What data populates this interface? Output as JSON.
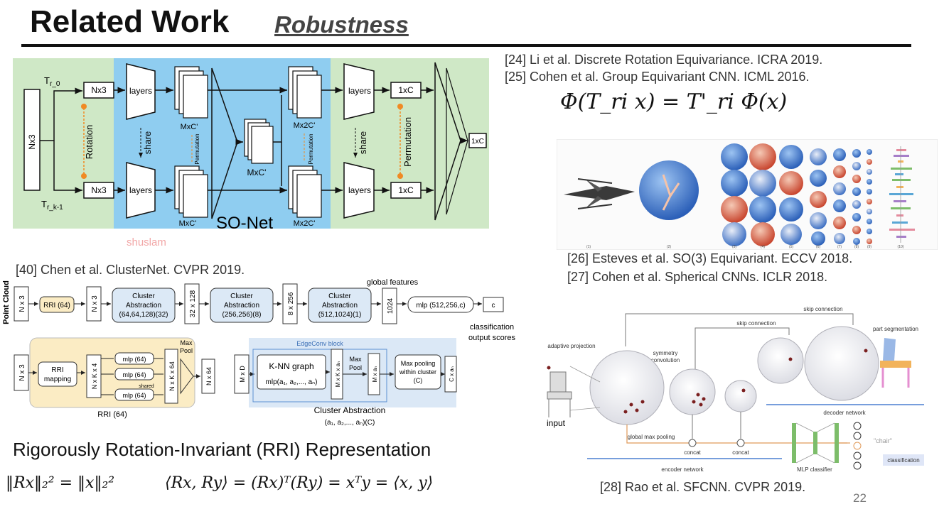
{
  "slide": {
    "title": "Related Work",
    "subtitle": "Robustness",
    "page_number": "22",
    "watermark": "shuslam"
  },
  "references": {
    "r24": "[24] Li et al. Discrete Rotation Equivariance. ICRA 2019.",
    "r25": "[25] Cohen et al. Group Equivariant CNN. ICML 2016.",
    "r26": "[26] Esteves et al. SO(3) Equivariant. ECCV 2018.",
    "r27": "[27] Cohen et al. Spherical CNNs. ICLR 2018.",
    "r40": "[40] Chen et al. ClusterNet. CVPR 2019.",
    "r28": "[28] Rao et al. SFCNN. CVPR 2019."
  },
  "equations": {
    "equivariance": "Φ(T_ri x) = T'_ri Φ(x)",
    "rri_norm": "‖Rx‖₂² = ‖x‖₂²",
    "rri_inner": "⟨Rx, Ry⟩ = (Rx)ᵀ(Ry) = xᵀy = ⟨x, y⟩"
  },
  "rri_heading": "Rigorously Rotation-Invariant (RRI) Representation",
  "sonet": {
    "label": "SO-Net",
    "tr0": "T",
    "tr0_sub": "r_0",
    "trk": "T",
    "trk_sub": "r_k-1",
    "nx3": "Nx3",
    "layers": "layers",
    "share": "share",
    "rotation": "Rotation",
    "permutation": "Permutation",
    "mxc": "MxC'",
    "mx2c": "Mx2C'",
    "onexc": "1xC"
  },
  "spherical_figure": {
    "caption_ticks": [
      "(1)",
      "(2)",
      "(3)",
      "(4)",
      "(5)",
      "(6)",
      "(7)",
      "(8)",
      "(9)",
      "(10)"
    ]
  },
  "clusternet": {
    "point_cloud": "Point Cloud",
    "nx3": "N x 3",
    "rri64": "RRI (64)",
    "ca1": [
      "Cluster",
      "Abstraction",
      "(64,64,128)(32)"
    ],
    "d32x128": "32 x 128",
    "ca2": [
      "Cluster",
      "Abstraction",
      "(256,256)(8)"
    ],
    "d8x256": "8 x 256",
    "ca3": [
      "Cluster",
      "Abstraction",
      "(512,1024)(1)"
    ],
    "global_features": "global features",
    "d1024": "1024",
    "mlp_out": "mlp (512,256,c)",
    "c": "c",
    "scores": [
      "classification",
      "output scores"
    ],
    "rri_mapping": [
      "RRI",
      "mapping"
    ],
    "nxkx4": "N x K x 4",
    "mlp64": "mlp (64)",
    "shared": "shared",
    "nxkx64": "N x K x 64",
    "max_pool": [
      "Max",
      "Pool"
    ],
    "nx64": "N x 64",
    "rri64_caption": "RRI (64)",
    "mxd": "M x D",
    "edgeconv": "EdgeConv block",
    "knn": "K-NN graph",
    "mlp_an": "mlp(a₁, a₂,..., aₙ)",
    "mxkxan": "M x K x aₙ",
    "maxpool2": [
      "Max",
      "Pool"
    ],
    "mxan": "M x aₙ",
    "maxpool_cluster": [
      "Max pooling",
      "within cluster",
      "(C)"
    ],
    "cxan": "C x aₙ",
    "ca_caption": "Cluster Abstraction",
    "ca_params": "(a₁, a₂,..., aₙ)(C)"
  },
  "sfcnn": {
    "skip1": "skip connection",
    "skip2": "skip connection",
    "adaptive_projection": "adaptive projection",
    "symmetry_convolution": [
      "symmetry",
      "convolution"
    ],
    "part_segmentation": "part segmentation",
    "decoder": "decoder network",
    "input": "input",
    "global_max_pooling": "global max pooling",
    "concat1": "concat",
    "concat2": "concat",
    "encoder": "encoder network",
    "mlp_classifier": "MLP classifier",
    "chair": "\"chair\"",
    "classification": "classification"
  },
  "colors": {
    "sonet_outer": "#cfe8c6",
    "sonet_inner": "#8fcdf0",
    "orange": "#f08a24",
    "rri_box": "#fbecc4",
    "cluster_box": "#dce9f6",
    "edgeconv_box": "#dbe8f6",
    "sphere_blue": "#4a7fd0",
    "sphere_red": "#d9533a"
  }
}
